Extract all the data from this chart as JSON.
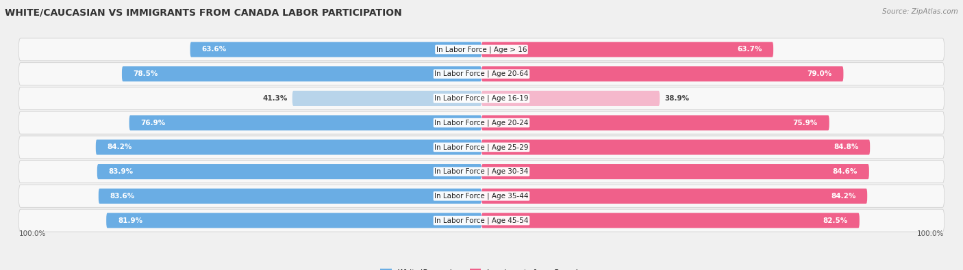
{
  "title": "WHITE/CAUCASIAN VS IMMIGRANTS FROM CANADA LABOR PARTICIPATION",
  "source": "Source: ZipAtlas.com",
  "categories": [
    "In Labor Force | Age > 16",
    "In Labor Force | Age 20-64",
    "In Labor Force | Age 16-19",
    "In Labor Force | Age 20-24",
    "In Labor Force | Age 25-29",
    "In Labor Force | Age 30-34",
    "In Labor Force | Age 35-44",
    "In Labor Force | Age 45-54"
  ],
  "white_values": [
    63.6,
    78.5,
    41.3,
    76.9,
    84.2,
    83.9,
    83.6,
    81.9
  ],
  "immigrant_values": [
    63.7,
    79.0,
    38.9,
    75.9,
    84.8,
    84.6,
    84.2,
    82.5
  ],
  "white_color": "#6aade4",
  "white_color_light": "#b8d4ea",
  "immigrant_color": "#f0608a",
  "immigrant_color_light": "#f5b8cc",
  "max_value": 100.0,
  "bg_color": "#f0f0f0",
  "row_bg_color": "#e8e8e8",
  "legend_white": "White/Caucasian",
  "legend_immigrant": "Immigrants from Canada",
  "title_fontsize": 10,
  "label_fontsize": 7.5,
  "value_fontsize": 7.5
}
